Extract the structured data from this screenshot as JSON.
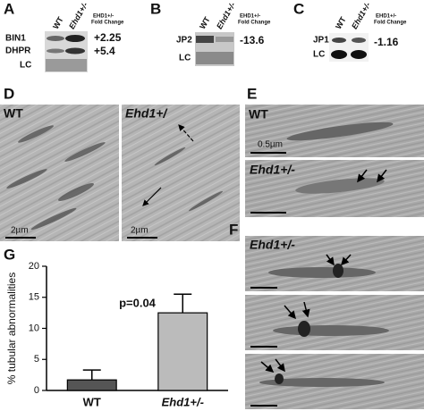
{
  "panel_a": {
    "label": "A",
    "lanes": [
      "WT",
      "Ehd1+/-"
    ],
    "fold_header": [
      "EHD1+/-",
      "Fold Change"
    ],
    "rows": [
      {
        "name": "BIN1",
        "fold": "+2.25"
      },
      {
        "name": "DHPR",
        "fold": "+5.4"
      },
      {
        "name": "LC"
      }
    ]
  },
  "panel_b": {
    "label": "B",
    "lanes": [
      "WT",
      "Ehd1+/-"
    ],
    "fold_header": [
      "EHD1+/-",
      "Fold Change"
    ],
    "rows": [
      {
        "name": "JP2",
        "fold": "-13.6"
      },
      {
        "name": "LC"
      }
    ]
  },
  "panel_c": {
    "label": "C",
    "lanes": [
      "WT",
      "Ehd1+/-"
    ],
    "fold_header": [
      "EHD1+/-",
      "Fold Change"
    ],
    "rows": [
      {
        "name": "JP1",
        "fold": "-1.16"
      },
      {
        "name": "LC"
      }
    ]
  },
  "panel_d": {
    "label": "D",
    "images": [
      {
        "label": "WT",
        "scale": "2µm"
      },
      {
        "label": "Ehd1+/",
        "scale": "2µm"
      }
    ]
  },
  "panel_e": {
    "label": "E",
    "images": [
      {
        "label": "WT",
        "scale": "0.5µm"
      },
      {
        "label": "Ehd1+/-"
      }
    ]
  },
  "panel_f": {
    "label": "F",
    "images": [
      {
        "label": "Ehd1+/-"
      }
    ]
  },
  "panel_g": {
    "label": "G"
  },
  "chart_data": {
    "type": "bar",
    "ylabel": "% tubular abnormalities",
    "annotation": "p=0.04",
    "categories": [
      "WT",
      "Ehd1+/-"
    ],
    "values": [
      1.7,
      12.5
    ],
    "errors": [
      1.6,
      3.0
    ],
    "colors": [
      "#555555",
      "#bbbbbb"
    ],
    "ylim": [
      0,
      20
    ],
    "yticks": [
      0,
      5,
      10,
      15,
      20
    ]
  }
}
